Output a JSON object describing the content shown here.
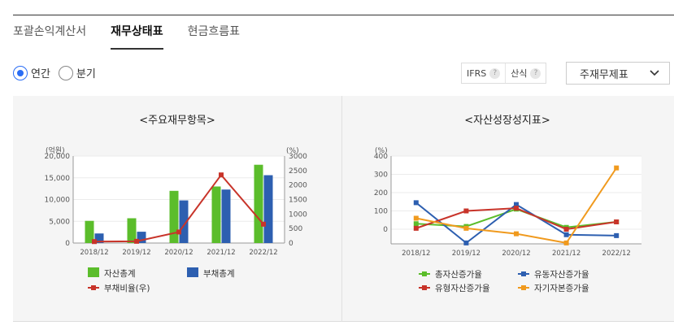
{
  "tabs": [
    {
      "label": "포괄손익계산서",
      "active": false
    },
    {
      "label": "재무상태표",
      "active": true
    },
    {
      "label": "현금흐름표",
      "active": false
    }
  ],
  "period": {
    "options": [
      {
        "label": "연간",
        "checked": true
      },
      {
        "label": "분기",
        "checked": false
      }
    ]
  },
  "controls": {
    "ifrs_label": "IFRS",
    "formula_label": "산식",
    "help_glyph": "?",
    "select_value": "주재무제표"
  },
  "chart_data": [
    {
      "type": "bar+line",
      "title": "<주요재무항목>",
      "left_unit": "(억원)",
      "right_unit": "(%)",
      "categories": [
        "2018/12",
        "2019/12",
        "2020/12",
        "2021/12",
        "2022/12"
      ],
      "left_ticks": [
        "0",
        "5,000",
        "10,000",
        "15,000",
        "20,000"
      ],
      "right_ticks": [
        "0",
        "500",
        "1000",
        "1500",
        "2000",
        "2500",
        "3000"
      ],
      "ylim_left": [
        0,
        20000
      ],
      "ylim_right": [
        0,
        3000
      ],
      "series": [
        {
          "name": "자산총계",
          "type": "bar",
          "axis": "left",
          "color": "#5bbd2b",
          "values": [
            5100,
            5700,
            12000,
            13000,
            18000
          ]
        },
        {
          "name": "부채총계",
          "type": "bar",
          "axis": "left",
          "color": "#2d5fb0",
          "values": [
            2200,
            2600,
            9800,
            12300,
            15600
          ]
        },
        {
          "name": "부채비율(우)",
          "type": "line",
          "axis": "right",
          "color": "#c8342a",
          "values": [
            50,
            60,
            380,
            2350,
            650
          ]
        }
      ]
    },
    {
      "type": "line",
      "title": "<자산성장성지표>",
      "unit": "(%)",
      "categories": [
        "2018/12",
        "2019/12",
        "2020/12",
        "2021/12",
        "2022/12"
      ],
      "y_ticks": [
        "0",
        "100",
        "200",
        "300",
        "400"
      ],
      "ylim": [
        -80,
        400
      ],
      "series": [
        {
          "name": "총자산증가율",
          "color": "#5bbd2b",
          "values": [
            30,
            15,
            110,
            10,
            40
          ]
        },
        {
          "name": "유동자산증가율",
          "color": "#2d5fb0",
          "values": [
            145,
            -75,
            135,
            -30,
            -35
          ]
        },
        {
          "name": "유형자산증가율",
          "color": "#c8342a",
          "values": [
            5,
            100,
            115,
            0,
            40
          ]
        },
        {
          "name": "자기자본증가율",
          "color": "#f09a1e",
          "values": [
            60,
            5,
            -25,
            -75,
            335
          ]
        }
      ]
    }
  ]
}
